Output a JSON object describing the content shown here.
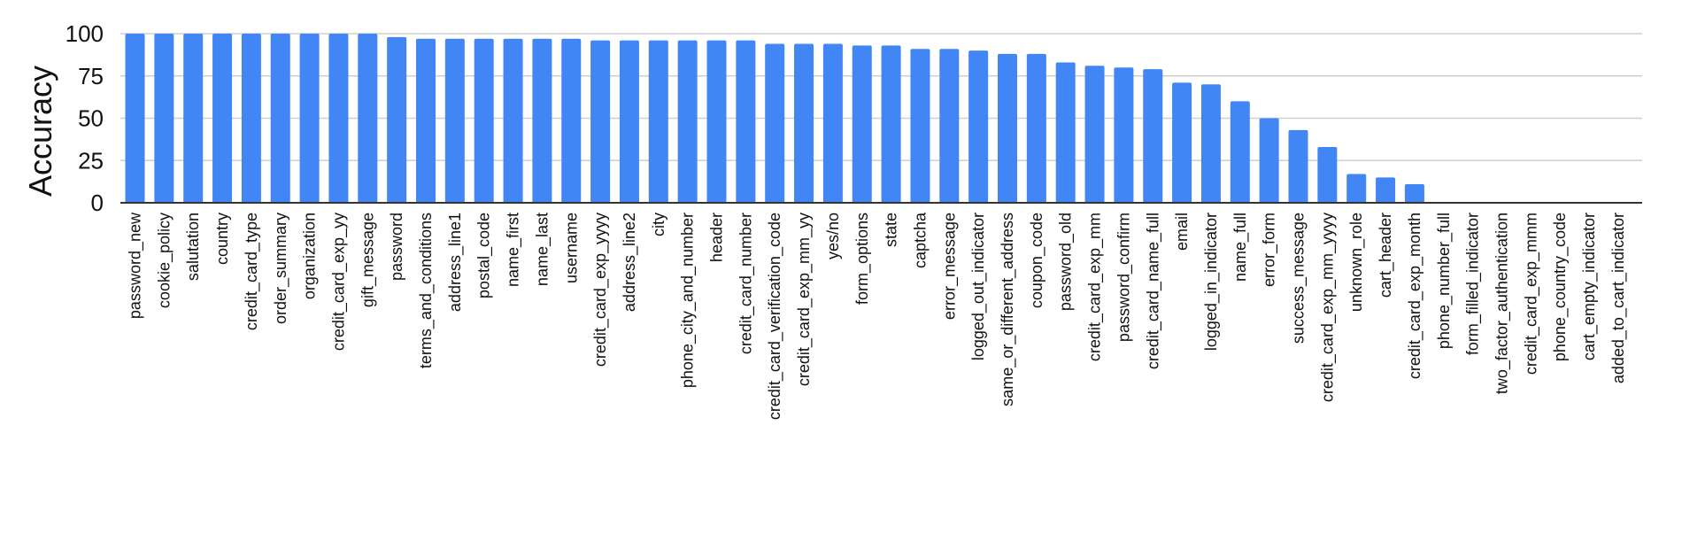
{
  "chart_data": {
    "type": "bar",
    "title": "",
    "xlabel": "",
    "ylabel": "Accuracy",
    "ylim": [
      0,
      100
    ],
    "yticks": [
      0,
      25,
      50,
      75,
      100
    ],
    "grid": true,
    "legend": "none",
    "bar_color": "#4285f4",
    "categories": [
      "password_new",
      "cookie_policy",
      "salutation",
      "country",
      "credit_card_type",
      "order_summary",
      "organization",
      "credit_card_exp_yy",
      "gift_message",
      "password",
      "terms_and_conditions",
      "address_line1",
      "postal_code",
      "name_first",
      "name_last",
      "username",
      "credit_card_exp_yyyy",
      "address_line2",
      "city",
      "phone_city_and_number",
      "header",
      "credit_card_number",
      "credit_card_verification_code",
      "credit_card_exp_mm_yy",
      "yes/no",
      "form_options",
      "state",
      "captcha",
      "error_message",
      "logged_out_indicator",
      "same_or_different_address",
      "coupon_code",
      "password_old",
      "credit_card_exp_mm",
      "password_confirm",
      "credit_card_name_full",
      "email",
      "logged_in_indicator",
      "name_full",
      "error_form",
      "success_message",
      "credit_card_exp_mm_yyyy",
      "unknown_role",
      "cart_header",
      "credit_card_exp_month",
      "phone_number_full",
      "form_filled_indicator",
      "two_factor_authentication",
      "credit_card_exp_mmm",
      "phone_country_code",
      "cart_empty_indicator",
      "added_to_cart_indicator"
    ],
    "values": [
      100,
      100,
      100,
      100,
      100,
      100,
      100,
      100,
      100,
      98,
      97,
      97,
      97,
      97,
      97,
      97,
      96,
      96,
      96,
      96,
      96,
      96,
      94,
      94,
      94,
      93,
      93,
      91,
      91,
      90,
      88,
      88,
      83,
      81,
      80,
      79,
      71,
      70,
      60,
      50,
      43,
      33,
      17,
      15,
      11,
      0,
      0,
      0,
      0,
      0,
      0,
      0
    ]
  }
}
